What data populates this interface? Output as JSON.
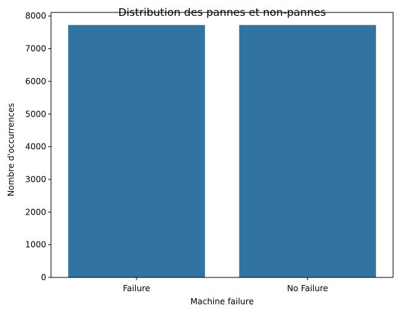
{
  "chart_data": {
    "type": "bar",
    "title": "Distribution des pannes et non-pannes",
    "xlabel": "Machine failure",
    "ylabel": "Nombre d'occurrences",
    "categories": [
      "Failure",
      "No Failure"
    ],
    "values": [
      7725,
      7725
    ],
    "ylim": [
      0,
      8110
    ],
    "yticks": [
      0,
      1000,
      2000,
      3000,
      4000,
      5000,
      6000,
      7000,
      8000
    ],
    "bar_color": "#3274a1",
    "grid": false,
    "legend": "none"
  }
}
